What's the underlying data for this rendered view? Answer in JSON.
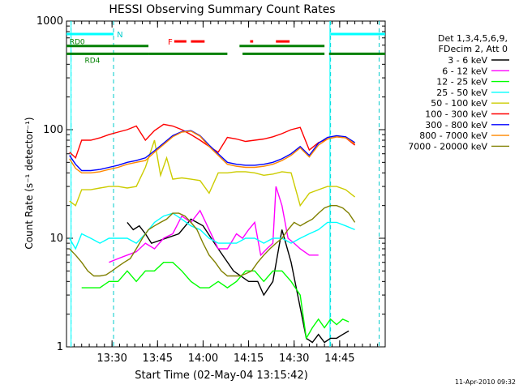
{
  "chart_data": {
    "type": "line",
    "title": "HESSI Observing Summary Count Rates",
    "xlabel": "Start Time (02-May-04 13:15:42)",
    "ylabel": "Count Rate (s⁻¹ detector⁻¹)",
    "yscale": "log",
    "ylim": [
      1,
      1000
    ],
    "xlim_minutes": [
      795,
      900
    ],
    "x_ticks": [
      {
        "label": "13:30",
        "min": 810
      },
      {
        "label": "13:45",
        "min": 825
      },
      {
        "label": "14:00",
        "min": 840
      },
      {
        "label": "14:15",
        "min": 855
      },
      {
        "label": "14:30",
        "min": 870
      },
      {
        "label": "14:45",
        "min": 885
      }
    ],
    "y_ticks": [
      {
        "label": "1",
        "value": 1
      },
      {
        "label": "10",
        "value": 10
      },
      {
        "label": "100",
        "value": 100
      },
      {
        "label": "1000",
        "value": 1000
      }
    ],
    "legend": {
      "position": "right",
      "header": [
        "Det 1,3,4,5,6,9,",
        "FDecim 2, Att 0"
      ]
    },
    "series": [
      {
        "name": "3 - 6 keV",
        "color": "#000000",
        "x": [
          815,
          817,
          819,
          821,
          823,
          832,
          836,
          840,
          845,
          850,
          855,
          858,
          860,
          863,
          866,
          869,
          872,
          874,
          876,
          878,
          880,
          882,
          884,
          886,
          888
        ],
        "y": [
          14,
          12,
          13,
          11,
          9,
          11,
          15,
          13,
          8,
          5,
          4,
          4,
          3,
          4,
          12,
          6,
          2.3,
          1.2,
          1.1,
          1.3,
          1.1,
          1.2,
          1.2,
          1.3,
          1.4
        ]
      },
      {
        "name": "6 - 12 keV",
        "color": "#ff00ff",
        "x": [
          809,
          812,
          815,
          818,
          821,
          824,
          827,
          830,
          833,
          836,
          839,
          842,
          845,
          848,
          851,
          853,
          855,
          857,
          859,
          861,
          863,
          864,
          866,
          868,
          870,
          872,
          875,
          878
        ],
        "y": [
          6,
          6.5,
          7,
          7.5,
          9,
          8,
          10,
          11,
          16,
          14,
          18,
          12,
          8,
          8,
          11,
          10,
          12,
          14,
          7,
          8,
          9,
          30,
          20,
          10,
          9,
          8,
          7,
          7
        ]
      },
      {
        "name": "12 - 25 keV",
        "color": "#00ff00",
        "x": [
          800,
          803,
          806,
          809,
          812,
          815,
          818,
          821,
          824,
          827,
          830,
          833,
          836,
          839,
          842,
          845,
          848,
          851,
          854,
          857,
          860,
          863,
          866,
          869,
          872,
          874,
          876,
          878,
          880,
          882,
          884,
          886,
          888
        ],
        "y": [
          3.5,
          3.5,
          3.5,
          4,
          4,
          5,
          4,
          5,
          5,
          6,
          6,
          5,
          4,
          3.5,
          3.5,
          4,
          3.5,
          4,
          5,
          5,
          4,
          5,
          5,
          4,
          3,
          1.2,
          1.5,
          1.8,
          1.5,
          1.8,
          1.6,
          1.8,
          1.7
        ]
      },
      {
        "name": "25 - 50 keV",
        "color": "#00ffff",
        "x": [
          796,
          798,
          800,
          803,
          806,
          809,
          812,
          815,
          818,
          821,
          824,
          827,
          830,
          833,
          836,
          839,
          842,
          845,
          848,
          851,
          854,
          857,
          860,
          863,
          866,
          869,
          872,
          875,
          878,
          881,
          884,
          887,
          890
        ],
        "y": [
          10,
          8,
          11,
          10,
          9,
          10,
          10,
          10,
          9,
          11,
          14,
          16,
          17,
          15,
          13,
          12,
          10,
          9,
          9,
          9,
          10,
          10,
          9,
          10,
          10,
          9,
          10,
          11,
          12,
          14,
          14,
          13,
          12
        ]
      },
      {
        "name": "50 - 100 keV",
        "color": "#cccc00",
        "x": [
          796,
          798,
          800,
          803,
          806,
          809,
          812,
          815,
          818,
          821,
          824,
          826,
          828,
          830,
          833,
          836,
          839,
          842,
          845,
          848,
          851,
          854,
          857,
          860,
          863,
          866,
          869,
          872,
          875,
          878,
          881,
          884,
          887,
          890
        ],
        "y": [
          22,
          20,
          28,
          28,
          29,
          30,
          30,
          29,
          30,
          45,
          80,
          38,
          55,
          35,
          36,
          35,
          34,
          26,
          40,
          40,
          41,
          41,
          40,
          38,
          39,
          41,
          40,
          20,
          26,
          28,
          30,
          30,
          28,
          24
        ]
      },
      {
        "name": "100 - 300 keV",
        "color": "#ff0000",
        "x": [
          796,
          798,
          800,
          803,
          806,
          809,
          812,
          815,
          818,
          821,
          824,
          827,
          830,
          833,
          836,
          839,
          842,
          845,
          848,
          851,
          854,
          857,
          860,
          863,
          866,
          869,
          872,
          875,
          878,
          881,
          884,
          887,
          890
        ],
        "y": [
          62,
          55,
          80,
          80,
          84,
          90,
          95,
          100,
          108,
          80,
          98,
          112,
          108,
          100,
          90,
          80,
          70,
          62,
          85,
          82,
          78,
          80,
          82,
          86,
          92,
          100,
          105,
          65,
          76,
          82,
          86,
          84,
          72
        ]
      },
      {
        "name": "300 - 800 keV",
        "color": "#0000ff",
        "x": [
          796,
          798,
          800,
          803,
          806,
          809,
          812,
          815,
          818,
          821,
          824,
          827,
          830,
          833,
          836,
          839,
          842,
          845,
          848,
          851,
          854,
          857,
          860,
          863,
          866,
          869,
          872,
          875,
          878,
          881,
          884,
          887,
          890
        ],
        "y": [
          58,
          48,
          42,
          42,
          43,
          45,
          47,
          50,
          52,
          55,
          64,
          75,
          88,
          96,
          98,
          88,
          72,
          60,
          50,
          48,
          47,
          47,
          48,
          50,
          54,
          60,
          70,
          58,
          75,
          85,
          88,
          86,
          76
        ]
      },
      {
        "name": "800 - 7000 keV",
        "color": "#ff8800",
        "x": [
          796,
          798,
          800,
          803,
          806,
          809,
          812,
          815,
          818,
          821,
          824,
          827,
          830,
          833,
          836,
          839,
          842,
          845,
          848,
          851,
          854,
          857,
          860,
          863,
          866,
          869,
          872,
          875,
          878,
          881,
          884,
          887,
          890
        ],
        "y": [
          54,
          44,
          40,
          40,
          41,
          43,
          45,
          48,
          50,
          52,
          62,
          73,
          86,
          95,
          97,
          87,
          70,
          58,
          48,
          46,
          45,
          45,
          46,
          48,
          52,
          58,
          68,
          56,
          72,
          82,
          86,
          84,
          74
        ]
      },
      {
        "name": "7000 - 20000 keV",
        "color": "#808000",
        "x": [
          796,
          798,
          800,
          802,
          804,
          806,
          808,
          810,
          812,
          814,
          816,
          818,
          820,
          822,
          824,
          826,
          828,
          830,
          832,
          834,
          836,
          838,
          840,
          842,
          844,
          846,
          848,
          850,
          852,
          854,
          856,
          858,
          860,
          862,
          864,
          866,
          868,
          870,
          872,
          874,
          876,
          878,
          880,
          882,
          884,
          886,
          888,
          890
        ],
        "y": [
          8,
          7,
          6,
          5,
          4.5,
          4.5,
          4.6,
          5,
          5.5,
          6,
          6.5,
          8,
          10,
          12,
          13,
          14,
          15,
          17,
          17,
          16,
          14,
          12,
          9,
          7,
          6,
          5,
          4.5,
          4.5,
          4.5,
          4.7,
          5,
          6,
          7,
          8,
          9,
          10,
          12,
          14,
          13,
          14,
          15,
          17,
          19,
          20,
          20,
          19,
          17,
          14
        ]
      }
    ],
    "attenuator_markers": {
      "N_label": "N",
      "F_label": "F",
      "RD0_label": "RD0",
      "RD4_label": "RD4",
      "N_segments": [
        [
          795,
          810.5
        ],
        [
          882,
          900
        ]
      ],
      "F_segments": [
        [
          830.5,
          834.5
        ],
        [
          836,
          840.5
        ],
        [
          855.5,
          856.5
        ],
        [
          864,
          868.5
        ]
      ],
      "RD0_segments": [
        [
          795,
          822
        ],
        [
          852,
          880
        ]
      ],
      "RD4_segments": [
        [
          795,
          822
        ],
        [
          822,
          848
        ],
        [
          853,
          880
        ],
        [
          881.5,
          900
        ]
      ],
      "night_lines": [
        796.5,
        810.5,
        882,
        898
      ],
      "saa_lines": [
        796.5,
        881.8
      ]
    },
    "timestamp": "11-Apr-2010 09:32"
  }
}
